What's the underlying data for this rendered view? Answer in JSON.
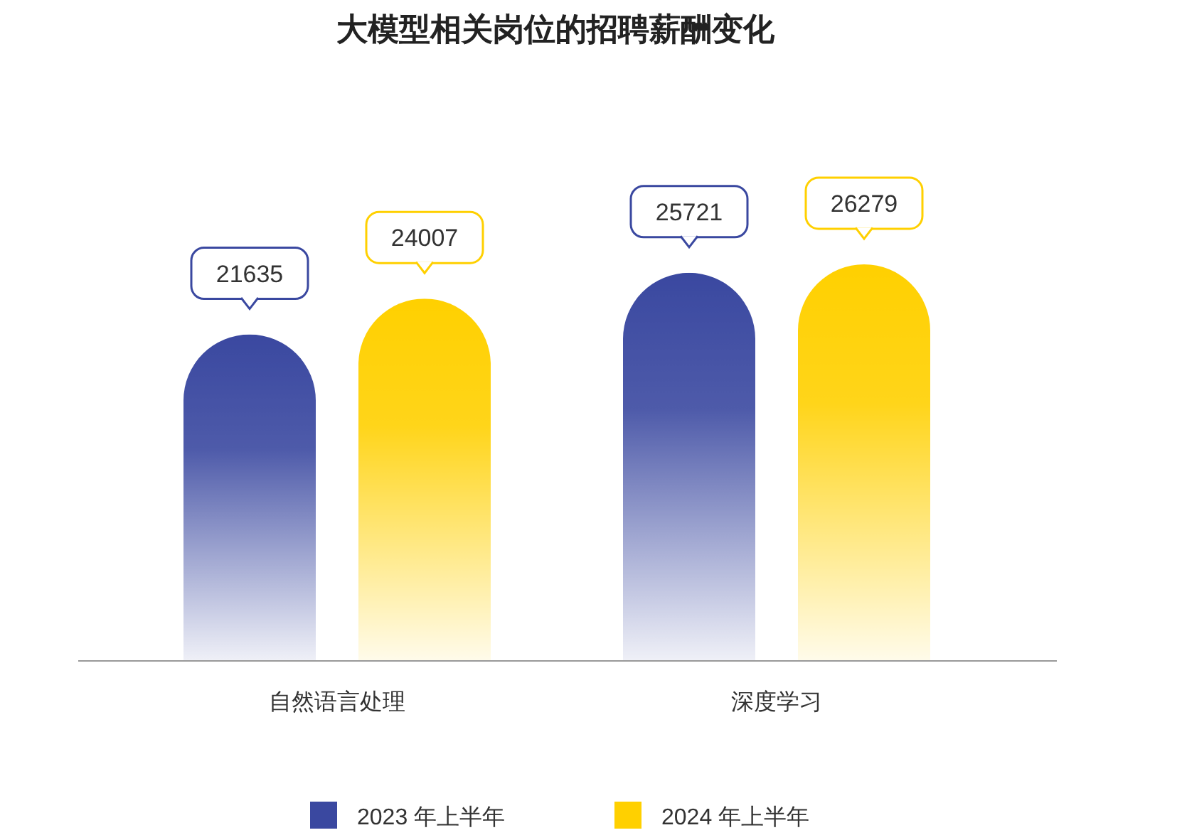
{
  "chart_data": {
    "type": "bar",
    "title": "大模型相关岗位的招聘薪酬变化",
    "categories": [
      "自然语言处理",
      "深度学习"
    ],
    "series": [
      {
        "name": "2023 年上半年",
        "color": "#3a48a0",
        "values": [
          21635,
          25721
        ]
      },
      {
        "name": "2024 年上半年",
        "color": "#ffd000",
        "values": [
          24007,
          26279
        ]
      }
    ],
    "data_labels": true,
    "legend": "bottom"
  }
}
